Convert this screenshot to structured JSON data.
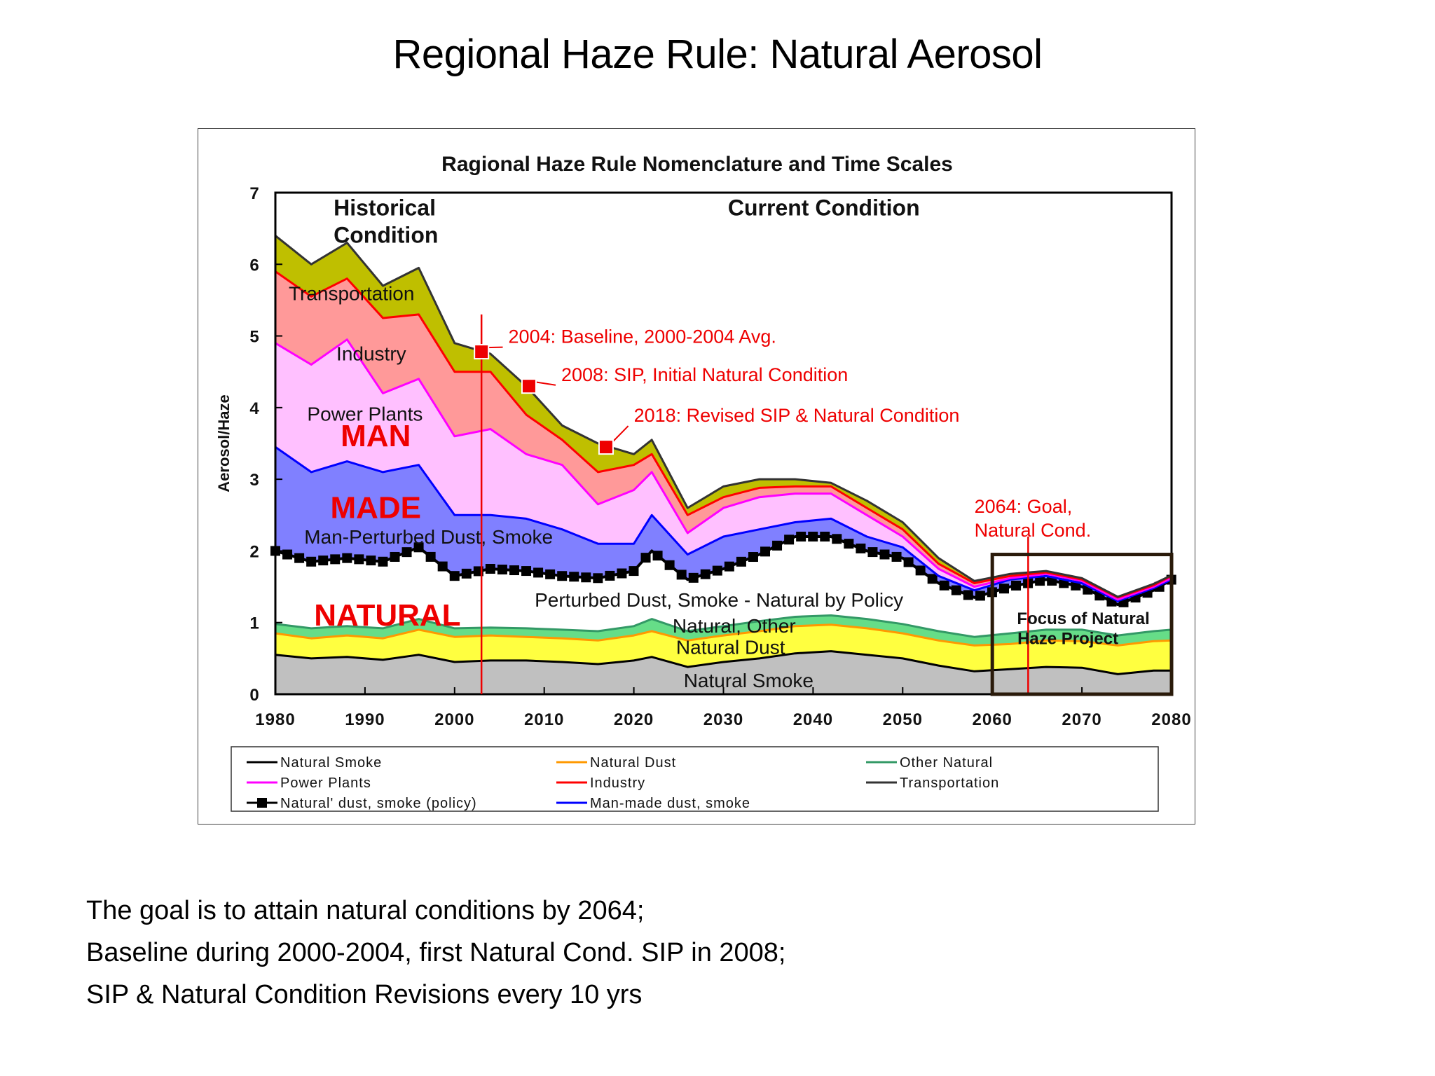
{
  "slide": {
    "title": "Regional Haze Rule: Natural Aerosol",
    "caption_lines": [
      "The goal is to attain natural conditions by 2064;",
      "Baseline during 2000-2004, first Natural Cond. SIP in 2008;",
      "SIP & Natural Condition Revisions every 10 yrs"
    ]
  },
  "chart_data": {
    "type": "area",
    "title": "Ragional Haze Rule Nomenclature and Time Scales",
    "xlabel": "",
    "ylabel": "Aerosol/Haze",
    "xlim": [
      1980,
      2080
    ],
    "ylim": [
      0,
      7
    ],
    "xticks": [
      1980,
      1990,
      2000,
      2010,
      2020,
      2030,
      2040,
      2050,
      2060,
      2070,
      2080
    ],
    "yticks": [
      0,
      1,
      2,
      3,
      4,
      5,
      6,
      7
    ],
    "stacked": true,
    "values_are_cumulative_tops": true,
    "x": [
      1980,
      1984,
      1988,
      1992,
      1996,
      2000,
      2004,
      2008,
      2012,
      2016,
      2020,
      2022,
      2026,
      2030,
      2034,
      2038,
      2042,
      2046,
      2050,
      2054,
      2058,
      2062,
      2066,
      2070,
      2074,
      2078,
      2080
    ],
    "series": [
      {
        "name": "Natural Smoke",
        "fill": "#c0c0c0",
        "line": "#000000",
        "values": [
          0.55,
          0.5,
          0.52,
          0.48,
          0.55,
          0.45,
          0.47,
          0.47,
          0.45,
          0.42,
          0.47,
          0.52,
          0.38,
          0.45,
          0.5,
          0.57,
          0.6,
          0.55,
          0.5,
          0.4,
          0.32,
          0.35,
          0.38,
          0.37,
          0.28,
          0.33,
          0.33
        ]
      },
      {
        "name": "Natural Dust",
        "fill": "#ffff40",
        "line": "#ff9900",
        "values": [
          0.85,
          0.78,
          0.82,
          0.78,
          0.9,
          0.8,
          0.82,
          0.8,
          0.78,
          0.75,
          0.82,
          0.88,
          0.75,
          0.82,
          0.88,
          0.95,
          0.97,
          0.92,
          0.85,
          0.75,
          0.68,
          0.7,
          0.75,
          0.74,
          0.68,
          0.74,
          0.75
        ]
      },
      {
        "name": "Other Natural",
        "fill": "#66dd88",
        "line": "#339966",
        "values": [
          0.98,
          0.92,
          0.95,
          0.92,
          1.05,
          0.92,
          0.93,
          0.92,
          0.9,
          0.88,
          0.95,
          1.05,
          0.88,
          0.95,
          1.02,
          1.08,
          1.1,
          1.05,
          0.98,
          0.88,
          0.8,
          0.85,
          0.9,
          0.9,
          0.82,
          0.88,
          0.9
        ]
      },
      {
        "name": "Natural' dust, smoke (policy)",
        "fill": "#ffffff",
        "line": "#000000",
        "marker": "square",
        "values": [
          2.0,
          1.85,
          1.9,
          1.85,
          2.05,
          1.65,
          1.75,
          1.72,
          1.65,
          1.62,
          1.72,
          2.0,
          1.6,
          1.75,
          1.95,
          2.2,
          2.2,
          2.0,
          1.9,
          1.55,
          1.35,
          1.5,
          1.6,
          1.5,
          1.25,
          1.45,
          1.6
        ]
      },
      {
        "name": "Man-made dust, smoke",
        "fill": "#8080ff",
        "line": "#0000ff",
        "values": [
          3.45,
          3.1,
          3.25,
          3.1,
          3.2,
          2.5,
          2.5,
          2.45,
          2.3,
          2.1,
          2.1,
          2.5,
          1.95,
          2.2,
          2.3,
          2.4,
          2.45,
          2.2,
          2.05,
          1.65,
          1.45,
          1.6,
          1.65,
          1.55,
          1.3,
          1.48,
          1.6
        ]
      },
      {
        "name": "Power Plants",
        "fill": "#ffc0ff",
        "line": "#ff00ff",
        "values": [
          4.9,
          4.6,
          4.95,
          4.2,
          4.4,
          3.6,
          3.7,
          3.35,
          3.2,
          2.65,
          2.85,
          3.1,
          2.25,
          2.6,
          2.75,
          2.8,
          2.8,
          2.5,
          2.2,
          1.75,
          1.5,
          1.62,
          1.68,
          1.58,
          1.32,
          1.5,
          1.62
        ]
      },
      {
        "name": "Industry",
        "fill": "#ff9999",
        "line": "#ff0000",
        "values": [
          5.9,
          5.55,
          5.8,
          5.25,
          5.3,
          4.5,
          4.5,
          3.9,
          3.55,
          3.1,
          3.2,
          3.35,
          2.5,
          2.75,
          2.88,
          2.9,
          2.9,
          2.6,
          2.3,
          1.82,
          1.55,
          1.65,
          1.7,
          1.6,
          1.35,
          1.52,
          1.65
        ]
      },
      {
        "name": "Transportation",
        "fill": "#bfbf00",
        "line": "#333333",
        "values": [
          6.4,
          6.0,
          6.3,
          5.7,
          5.95,
          4.9,
          4.75,
          4.3,
          3.75,
          3.5,
          3.35,
          3.55,
          2.6,
          2.9,
          3.0,
          3.0,
          2.95,
          2.7,
          2.4,
          1.9,
          1.58,
          1.68,
          1.72,
          1.62,
          1.36,
          1.54,
          1.66
        ]
      }
    ],
    "annotations": {
      "period_labels": [
        {
          "text": "Historical",
          "year": 1986.5,
          "y": 6.68
        },
        {
          "text": "Condition",
          "year": 1986.5,
          "y": 6.3
        },
        {
          "text": "Current Condition",
          "year": 2030.5,
          "y": 6.68
        }
      ],
      "area_labels": [
        {
          "name": "transportation",
          "text": "Transportation",
          "year": 1988.5,
          "y": 5.5,
          "size": 24,
          "color": "#111111",
          "bold": false
        },
        {
          "name": "industry",
          "text": "Industry",
          "year": 1990.7,
          "y": 4.66,
          "size": 24,
          "color": "#111111",
          "bold": false
        },
        {
          "name": "power-plants",
          "text": "Power Plants",
          "year": 1990,
          "y": 3.82,
          "size": 24,
          "color": "#111111",
          "bold": false
        },
        {
          "name": "man",
          "text": "MAN",
          "year": 1991.2,
          "y": 3.46,
          "size": 40,
          "color": "#ee0000",
          "bold": true
        },
        {
          "name": "made",
          "text": "MADE",
          "year": 1991.2,
          "y": 2.46,
          "size": 40,
          "color": "#ee0000",
          "bold": true
        },
        {
          "name": "man-perturbed",
          "text": "Man-Perturbed Dust, Smoke",
          "year": 1997.1,
          "y": 2.1,
          "size": 24,
          "color": "#111111",
          "bold": false
        },
        {
          "name": "natural",
          "text": "NATURAL",
          "year": 1992.5,
          "y": 0.96,
          "size": 40,
          "color": "#ee0000",
          "bold": true
        },
        {
          "name": "policy",
          "text": "Perturbed Dust, Smoke - Natural by Policy",
          "year": 2029.5,
          "y": 1.22,
          "size": 24,
          "color": "#111111",
          "bold": false
        },
        {
          "name": "other-natural",
          "text": "Natural, Other",
          "year": 2031.2,
          "y": 0.86,
          "size": 24,
          "color": "#111111",
          "bold": false
        },
        {
          "name": "natural-dust",
          "text": "Natural Dust",
          "year": 2030.8,
          "y": 0.56,
          "size": 24,
          "color": "#111111",
          "bold": false
        },
        {
          "name": "natural-smoke",
          "text": "Natural Smoke",
          "year": 2032.8,
          "y": 0.1,
          "size": 24,
          "color": "#111111",
          "bold": false
        }
      ],
      "milestones": [
        {
          "text": "2004: Baseline, 2000-2004 Avg.",
          "year": 2003,
          "y": 4.78,
          "label_year": 2006,
          "label_y": 5.0
        },
        {
          "text": "2008: SIP, Initial Natural Condition",
          "year": 2008.3,
          "y": 4.3,
          "label_year": 2011.9,
          "label_y": 4.47
        },
        {
          "text": "2018: Revised SIP & Natural Condition",
          "year": 2016.9,
          "y": 3.45,
          "label_year": 2020,
          "label_y": 3.9
        }
      ],
      "vertical_lines": [
        {
          "year": 2003,
          "y_top": 5.3,
          "color": "#ee0000"
        },
        {
          "year": 2064,
          "y_top": 2.2,
          "color": "#ee0000"
        }
      ],
      "goal_label": [
        "2064: Goal,",
        "Natural Cond."
      ],
      "focus_box": {
        "x0": 2060,
        "x1": 2080,
        "y0": 0,
        "y1": 1.95,
        "label": [
          "Focus of Natural",
          "Haze Project"
        ]
      }
    },
    "legend": {
      "position": "bottom",
      "items": [
        {
          "label": "Natural Smoke",
          "color": "#000000"
        },
        {
          "label": "Natural Dust",
          "color": "#ff9900"
        },
        {
          "label": "Other Natural",
          "color": "#339966"
        },
        {
          "label": "Power Plants",
          "color": "#ff00ff"
        },
        {
          "label": "Industry",
          "color": "#ff0000"
        },
        {
          "label": "Transportation",
          "color": "#333333"
        },
        {
          "label": "Natural' dust, smoke (policy)",
          "color": "#000000",
          "marker": "square"
        },
        {
          "label": "Man-made dust, smoke",
          "color": "#0000ff"
        }
      ]
    },
    "grid": false
  }
}
